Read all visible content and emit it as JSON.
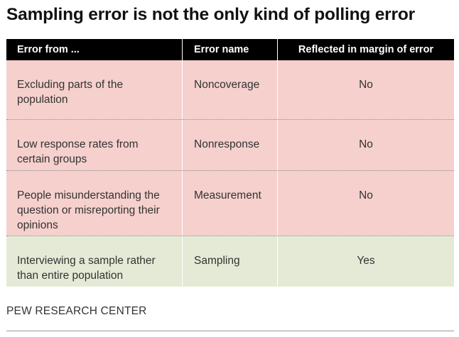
{
  "title": "Sampling error is not the only kind of polling error",
  "table": {
    "headers": [
      "Error from ...",
      "Error name",
      "Reflected in margin of error"
    ],
    "rows": [
      {
        "source": "Excluding parts of the population",
        "name": "Noncoverage",
        "reflected": "No",
        "color": "#f5d0cd"
      },
      {
        "source": "Low response rates from certain groups",
        "name": "Nonresponse",
        "reflected": "No",
        "color": "#f5d0cd"
      },
      {
        "source": "People misunderstanding the question or misreporting their opinions",
        "name": "Measurement",
        "reflected": "No",
        "color": "#f5d0cd"
      },
      {
        "source": "Interviewing a sample rather than entire population",
        "name": "Sampling",
        "reflected": "Yes",
        "color": "#e5ead6"
      }
    ]
  },
  "footer": {
    "source": "PEW RESEARCH CENTER"
  }
}
